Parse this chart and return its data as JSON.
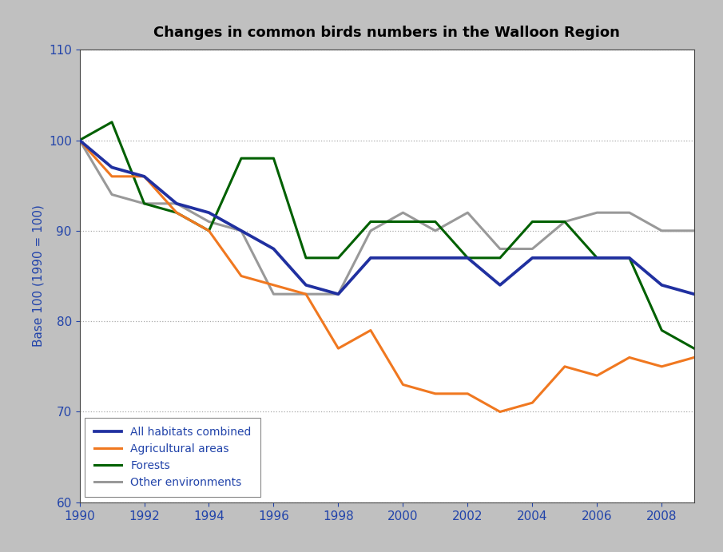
{
  "title": "Changes in common birds numbers in the Walloon Region",
  "ylabel": "Base 100 (1990 = 100)",
  "years": [
    1990,
    1991,
    1992,
    1993,
    1994,
    1995,
    1996,
    1997,
    1998,
    1999,
    2000,
    2001,
    2002,
    2003,
    2004,
    2005,
    2006,
    2007,
    2008,
    2009
  ],
  "all_habitats": [
    100,
    97,
    96,
    93,
    92,
    90,
    88,
    84,
    83,
    87,
    87,
    87,
    87,
    84,
    87,
    87,
    87,
    87,
    84,
    83
  ],
  "agricultural": [
    100,
    96,
    96,
    92,
    90,
    85,
    84,
    83,
    77,
    79,
    73,
    72,
    72,
    70,
    71,
    75,
    74,
    76,
    75,
    76
  ],
  "forests": [
    100,
    102,
    93,
    92,
    90,
    98,
    98,
    87,
    87,
    91,
    91,
    91,
    87,
    87,
    91,
    91,
    87,
    87,
    79,
    77
  ],
  "other": [
    100,
    94,
    93,
    93,
    91,
    90,
    83,
    83,
    83,
    90,
    92,
    90,
    92,
    88,
    88,
    91,
    92,
    92,
    90,
    90
  ],
  "all_habitats_color": "#2030a0",
  "agricultural_color": "#f07820",
  "forests_color": "#006000",
  "other_color": "#999999",
  "ylim": [
    60,
    110
  ],
  "yticks": [
    60,
    70,
    80,
    90,
    100,
    110
  ],
  "xticks": [
    1990,
    1992,
    1994,
    1996,
    1998,
    2000,
    2002,
    2004,
    2006,
    2008
  ],
  "grid_color": "#aaaaaa",
  "linewidth": 2.2,
  "legend_labels": [
    "All habitats combined",
    "Agricultural areas",
    "Forests",
    "Other environments"
  ],
  "figure_bg_color": "#c0c0c0",
  "plot_bg_color": "#ffffff",
  "title_fontsize": 13,
  "axis_fontsize": 11,
  "tick_color": "#2244aa"
}
